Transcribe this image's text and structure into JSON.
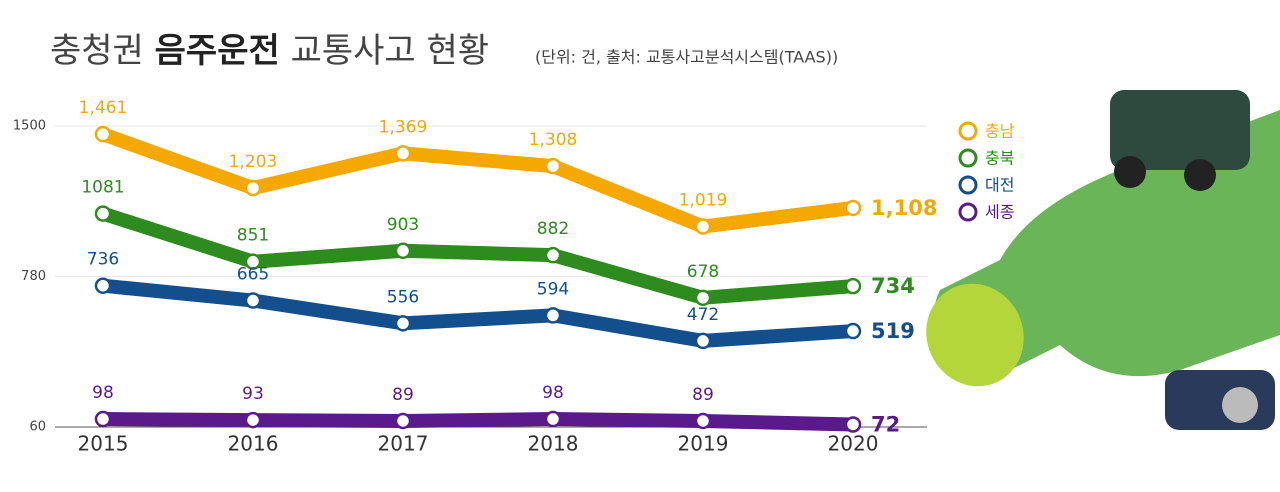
{
  "chart_data": {
    "type": "line",
    "title": [
      "충청권",
      "음주운전",
      "교통사고 현황"
    ],
    "subtitle": "(단위: 건, 출처: 교통사고분석시스템(TAAS))",
    "categories": [
      "2015",
      "2016",
      "2017",
      "2018",
      "2019",
      "2020"
    ],
    "series": [
      {
        "name": "충남",
        "color": "#f5a900",
        "values": [
          1461,
          1203,
          1369,
          1308,
          1019,
          1108
        ],
        "value_labels": [
          "1,461",
          "1,203",
          "1,369",
          "1,308",
          "1,019",
          "1,108"
        ]
      },
      {
        "name": "충북",
        "color": "#2e8b1e",
        "values": [
          1081,
          851,
          903,
          882,
          678,
          734
        ]
      },
      {
        "name": "대전",
        "color": "#134f8c",
        "values": [
          736,
          665,
          556,
          594,
          472,
          519
        ]
      },
      {
        "name": "세종",
        "color": "#5b1a8c",
        "values": [
          98,
          93,
          89,
          98,
          89,
          72
        ]
      }
    ],
    "ylim": [
      60,
      1500
    ],
    "yticks": [
      60,
      780,
      1500
    ],
    "grid": true
  }
}
